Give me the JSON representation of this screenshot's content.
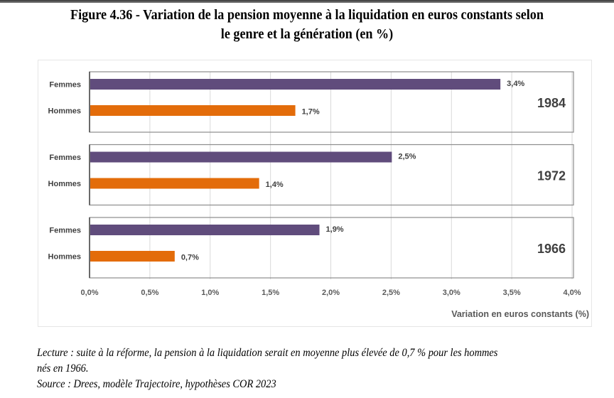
{
  "title_line1": "Figure 4.36 - Variation de la pension moyenne à la liquidation en euros constants selon",
  "title_line2": "le genre et la génération (en %)",
  "chart_data": {
    "type": "bar",
    "orientation": "horizontal",
    "title": "Figure 4.36 - Variation de la pension moyenne à la liquidation en euros constants selon le genre et la génération (en %)",
    "xlabel": "Variation en euros constants (%)",
    "ylabel": "",
    "xlim": [
      0,
      4.0
    ],
    "x_ticks": [
      0.0,
      0.5,
      1.0,
      1.5,
      2.0,
      2.5,
      3.0,
      3.5,
      4.0
    ],
    "x_tick_labels": [
      "0,0%",
      "0,5%",
      "1,0%",
      "1,5%",
      "2,0%",
      "2,5%",
      "3,0%",
      "3,5%",
      "4,0%"
    ],
    "grid": true,
    "legend": "none",
    "groups": [
      {
        "name": "1984",
        "bars": [
          {
            "category": "Femmes",
            "value": 3.4,
            "label": "3,4%",
            "color": "#604c7c"
          },
          {
            "category": "Hommes",
            "value": 1.7,
            "label": "1,7%",
            "color": "#e36c0a"
          }
        ]
      },
      {
        "name": "1972",
        "bars": [
          {
            "category": "Femmes",
            "value": 2.5,
            "label": "2,5%",
            "color": "#604c7c"
          },
          {
            "category": "Hommes",
            "value": 1.4,
            "label": "1,4%",
            "color": "#e36c0a"
          }
        ]
      },
      {
        "name": "1966",
        "bars": [
          {
            "category": "Femmes",
            "value": 1.9,
            "label": "1,9%",
            "color": "#604c7c"
          },
          {
            "category": "Hommes",
            "value": 0.7,
            "label": "0,7%",
            "color": "#e36c0a"
          }
        ]
      }
    ],
    "series": [
      {
        "name": "Femmes",
        "color": "#604c7c",
        "values": [
          3.4,
          2.5,
          1.9
        ]
      },
      {
        "name": "Hommes",
        "color": "#e36c0a",
        "values": [
          1.7,
          1.4,
          0.7
        ]
      }
    ],
    "categories": [
      "1984",
      "1972",
      "1966"
    ]
  },
  "notes": {
    "lecture_line1": "Lecture : suite à la réforme, la pension à la liquidation serait en moyenne plus élevée de 0,7 % pour les hommes",
    "lecture_line2": "nés en 1966.",
    "source": "Source : Drees, modèle Trajectoire, hypothèses COR 2023"
  }
}
